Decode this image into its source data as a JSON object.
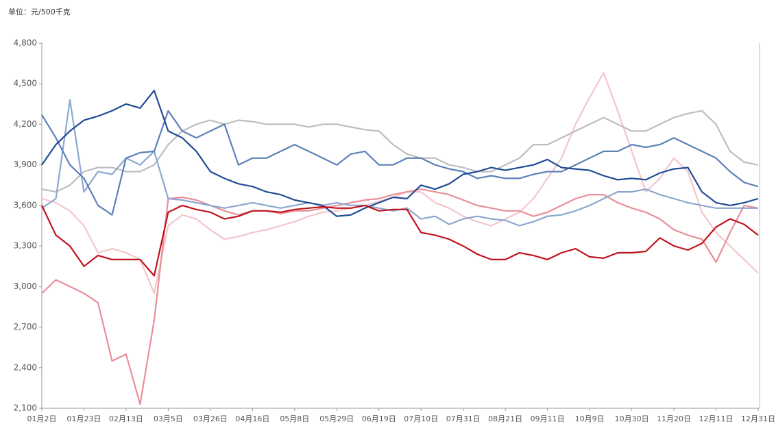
{
  "chart_data": {
    "type": "line",
    "subtitle": "单位：元/500千克",
    "categories": [
      "01月2日",
      null,
      null,
      "01月23日",
      null,
      null,
      "02月13日",
      null,
      null,
      "03月5日",
      null,
      null,
      "03月26日",
      null,
      null,
      "04月16日",
      null,
      null,
      "05月8日",
      null,
      null,
      "05月29日",
      null,
      null,
      "06月19日",
      null,
      null,
      "07月10日",
      null,
      null,
      "07月31日",
      null,
      null,
      "08月21日",
      null,
      null,
      "09月11日",
      null,
      null,
      "10月9日",
      null,
      null,
      "10月30日",
      null,
      null,
      "11月20日",
      null,
      null,
      "12月11日",
      null,
      null,
      "12月31日"
    ],
    "ylim": [
      2100,
      4800
    ],
    "yticks": [
      {
        "value": 2100,
        "label": "2,100"
      },
      {
        "value": 2400,
        "label": "2,400"
      },
      {
        "value": 2700,
        "label": "2,700"
      },
      {
        "value": 3000,
        "label": "3,000"
      },
      {
        "value": 3300,
        "label": "3,300"
      },
      {
        "value": 3600,
        "label": "3,600"
      },
      {
        "value": 3900,
        "label": "3,900"
      },
      {
        "value": 4200,
        "label": "4,200"
      },
      {
        "value": 4500,
        "label": "4,500"
      },
      {
        "value": 4800,
        "label": "4,800"
      }
    ],
    "series": [
      {
        "color": "#f2c6ca",
        "values": [
          3650,
          3620,
          3560,
          3450,
          3250,
          3280,
          3250,
          3200,
          2950,
          3450,
          3530,
          3500,
          3420,
          3350,
          3370,
          3400,
          3420,
          3450,
          3480,
          3520,
          3550,
          3560,
          3580,
          3600,
          3630,
          3660,
          3700,
          3700,
          3620,
          3580,
          3520,
          3480,
          3450,
          3500,
          3550,
          3650,
          3800,
          3950,
          4200,
          4400,
          4580,
          4300,
          4000,
          3700,
          3800,
          3950,
          3850,
          3550,
          3400,
          3300,
          3200,
          3100
        ]
      },
      {
        "color": "#bdbdbd",
        "values": [
          3720,
          3700,
          3750,
          3850,
          3880,
          3880,
          3850,
          3850,
          3900,
          4050,
          4150,
          4200,
          4230,
          4200,
          4230,
          4220,
          4200,
          4200,
          4200,
          4180,
          4200,
          4200,
          4180,
          4160,
          4150,
          4050,
          3980,
          3950,
          3950,
          3900,
          3880,
          3850,
          3850,
          3900,
          3950,
          4050,
          4050,
          4100,
          4150,
          4200,
          4250,
          4200,
          4150,
          4150,
          4200,
          4250,
          4280,
          4300,
          4200,
          4000,
          3920,
          3900
        ]
      },
      {
        "color": "#e98e98",
        "values": [
          2950,
          3050,
          3000,
          2950,
          2880,
          2450,
          2500,
          2130,
          2750,
          3650,
          3660,
          3640,
          3600,
          3560,
          3530,
          3560,
          3560,
          3540,
          3560,
          3560,
          3580,
          3600,
          3620,
          3640,
          3650,
          3680,
          3700,
          3720,
          3700,
          3680,
          3640,
          3600,
          3580,
          3560,
          3560,
          3520,
          3550,
          3600,
          3650,
          3680,
          3680,
          3620,
          3580,
          3550,
          3500,
          3420,
          3380,
          3350,
          3180,
          3400,
          3600,
          3580
        ]
      },
      {
        "color": "#8ba7d0",
        "values": [
          3580,
          3650,
          4380,
          3700,
          3850,
          3830,
          3950,
          3900,
          4000,
          3650,
          3640,
          3620,
          3600,
          3580,
          3600,
          3620,
          3600,
          3580,
          3600,
          3620,
          3600,
          3620,
          3600,
          3600,
          3580,
          3560,
          3580,
          3500,
          3520,
          3460,
          3500,
          3520,
          3500,
          3490,
          3450,
          3480,
          3520,
          3530,
          3560,
          3600,
          3650,
          3700,
          3700,
          3720,
          3680,
          3650,
          3620,
          3600,
          3580,
          3580,
          3580,
          3580
        ]
      },
      {
        "color": "#5b80b9",
        "values": [
          4270,
          4100,
          3900,
          3800,
          3600,
          3530,
          3950,
          3990,
          4000,
          4300,
          4150,
          4100,
          4150,
          4200,
          3900,
          3950,
          3950,
          4000,
          4050,
          4000,
          3950,
          3900,
          3980,
          4000,
          3900,
          3900,
          3950,
          3950,
          3900,
          3870,
          3850,
          3800,
          3820,
          3800,
          3800,
          3830,
          3850,
          3850,
          3900,
          3950,
          4000,
          4000,
          4050,
          4030,
          4050,
          4100,
          4050,
          4000,
          3950,
          3850,
          3770,
          3740
        ]
      },
      {
        "color": "#1f4b94",
        "values": [
          3900,
          4050,
          4150,
          4230,
          4260,
          4300,
          4350,
          4320,
          4450,
          4150,
          4100,
          4000,
          3850,
          3800,
          3760,
          3740,
          3700,
          3680,
          3640,
          3620,
          3600,
          3520,
          3530,
          3580,
          3620,
          3660,
          3650,
          3750,
          3720,
          3760,
          3830,
          3850,
          3880,
          3860,
          3880,
          3900,
          3940,
          3880,
          3870,
          3860,
          3820,
          3790,
          3800,
          3790,
          3840,
          3870,
          3880,
          3700,
          3620,
          3600,
          3620,
          3650
        ]
      },
      {
        "color": "#c0121d",
        "values": [
          3600,
          3380,
          3300,
          3150,
          3230,
          3200,
          3200,
          3200,
          3080,
          3550,
          3600,
          3570,
          3550,
          3500,
          3520,
          3560,
          3560,
          3550,
          3570,
          3580,
          3590,
          3580,
          3580,
          3600,
          3560,
          3570,
          3570,
          3400,
          3380,
          3350,
          3300,
          3240,
          3200,
          3200,
          3250,
          3230,
          3200,
          3250,
          3280,
          3220,
          3210,
          3250,
          3250,
          3260,
          3360,
          3300,
          3270,
          3320,
          3440,
          3500,
          3460,
          3380
        ]
      }
    ]
  }
}
